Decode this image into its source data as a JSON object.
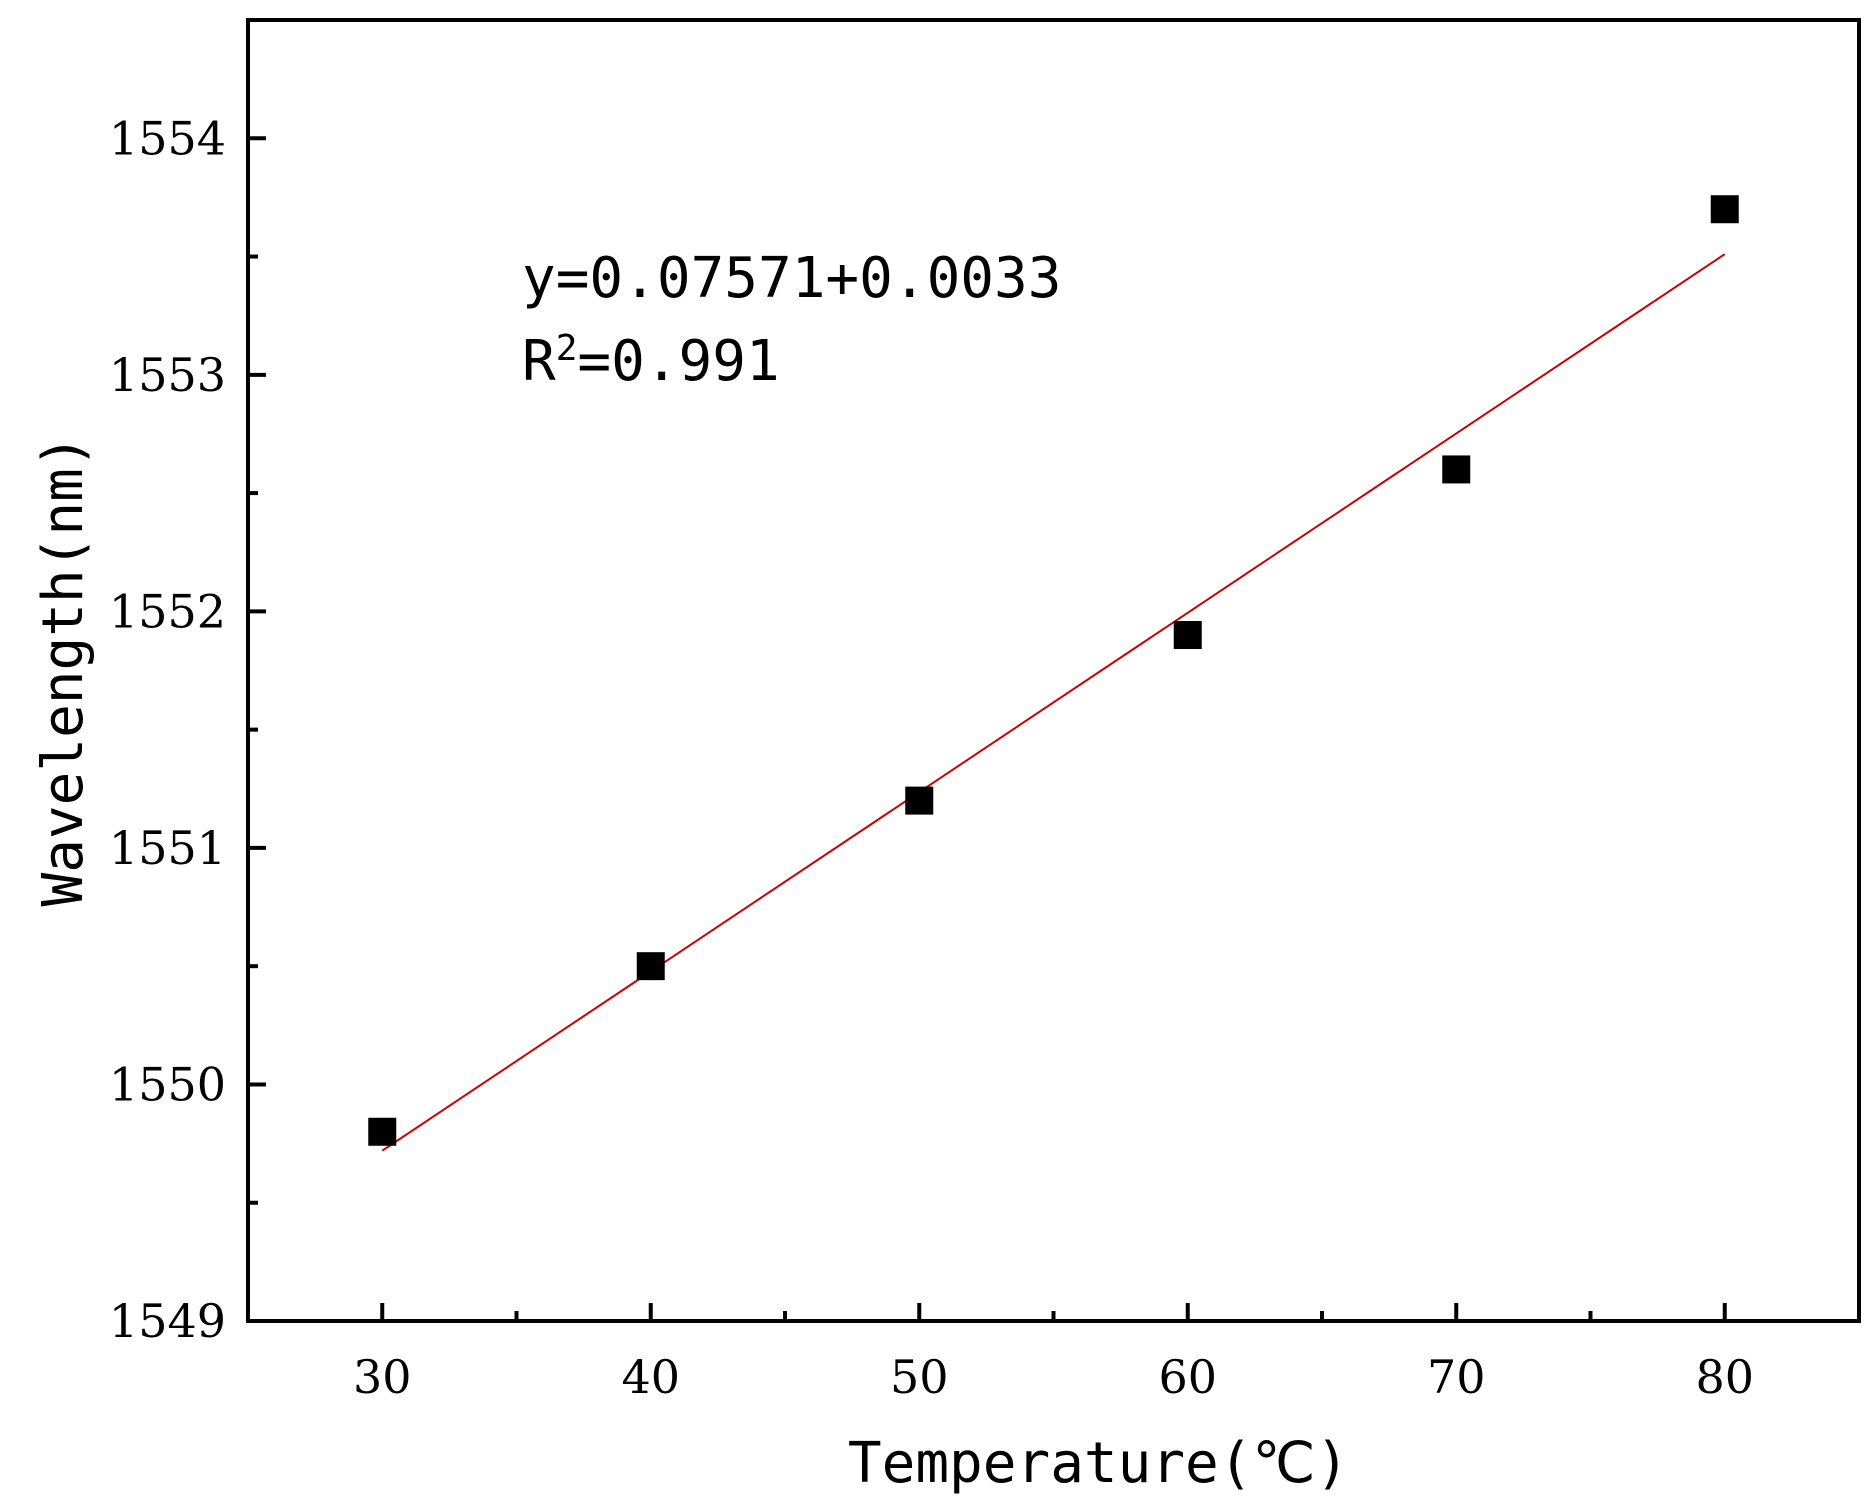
{
  "chart_data": {
    "type": "scatter",
    "title": "",
    "xlabel": "Temperature(℃)",
    "ylabel": "Wavelength(nm)",
    "xlim": [
      25,
      85
    ],
    "ylim": [
      1549,
      1554.5
    ],
    "x_ticks": [
      30,
      40,
      50,
      60,
      70,
      80
    ],
    "x_tick_labels": [
      "30",
      "40",
      "50",
      "60",
      "70",
      "80"
    ],
    "x_minor_ticks": [
      35,
      45,
      55,
      65,
      75
    ],
    "y_ticks": [
      1549,
      1550,
      1551,
      1552,
      1553,
      1554
    ],
    "y_tick_labels": [
      "1549",
      "1550",
      "1551",
      "1552",
      "1553",
      "1554"
    ],
    "y_minor_ticks": [
      1549.5,
      1550.5,
      1551.5,
      1552.5,
      1553.5
    ],
    "grid": false,
    "series": [
      {
        "marker": "square",
        "color": "#000000",
        "x": [
          30,
          40,
          50,
          60,
          70,
          80
        ],
        "y": [
          1549.8,
          1550.5,
          1551.2,
          1551.9,
          1552.6,
          1553.7
        ]
      }
    ],
    "fit_line": {
      "color": "#cc0000",
      "x": [
        30,
        80
      ],
      "y": [
        1549.72,
        1553.51
      ]
    },
    "annotations": {
      "equation": "y=0.07571+0.0033",
      "r_squared_prefix": "R",
      "r_squared_exponent": "2",
      "r_squared_value": "=0.991"
    }
  }
}
